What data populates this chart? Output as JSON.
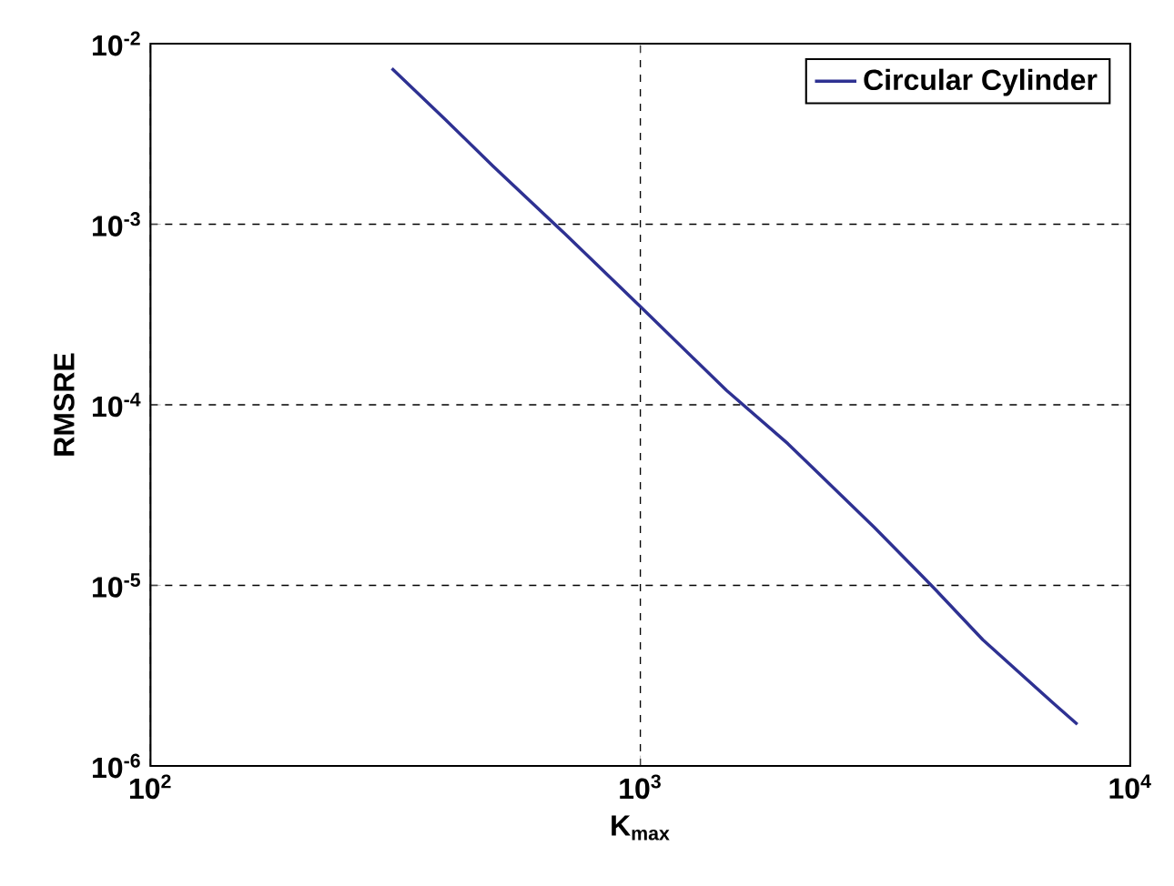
{
  "chart_data": {
    "type": "line",
    "xlabel": "K$_{max}$",
    "ylabel": "RMSRE",
    "log": "xy",
    "grid": true,
    "legend": "top right",
    "marker": "none",
    "line_style": "solid",
    "xlim": [
      100,
      10000
    ],
    "ylim": [
      1e-06,
      0.01
    ],
    "xticks": [
      {
        "value": 100,
        "label": "10$^{2}$"
      },
      {
        "value": 1000,
        "label": "10$^{3}$"
      },
      {
        "value": 10000,
        "label": "10$^{4}$"
      }
    ],
    "yticks": [
      {
        "value": 1e-06,
        "label": "10$^{-6}$"
      },
      {
        "value": 1e-05,
        "label": "10$^{-5}$"
      },
      {
        "value": 0.0001,
        "label": "10$^{-4}$"
      },
      {
        "value": 0.001,
        "label": "10$^{-3}$"
      },
      {
        "value": 0.01,
        "label": "10$^{-2}$"
      }
    ],
    "x": [
      311,
      400,
      500,
      700,
      1000,
      1500,
      2000,
      3000,
      4000,
      5000,
      7000,
      7800
    ],
    "series": [
      {
        "name": "Circular Cylinder",
        "color": "#2e3192",
        "values": [
          0.0073,
          0.0038,
          0.0021,
          0.00089,
          0.00035,
          0.00012,
          6.1e-05,
          2.1e-05,
          9.5e-06,
          5e-06,
          2.2e-06,
          1.7e-06
        ]
      }
    ]
  }
}
